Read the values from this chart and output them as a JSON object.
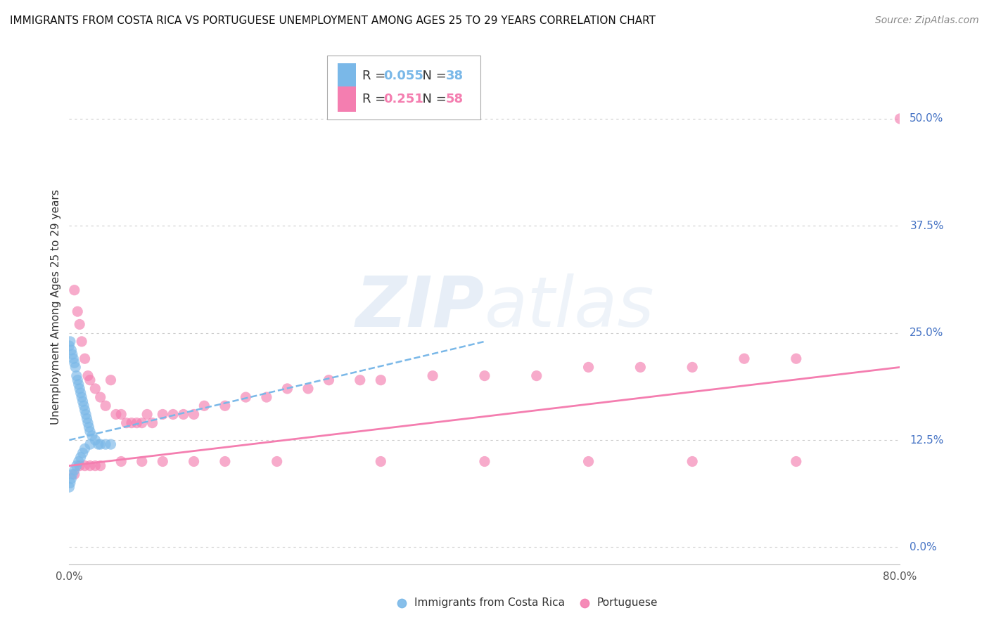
{
  "title": "IMMIGRANTS FROM COSTA RICA VS PORTUGUESE UNEMPLOYMENT AMONG AGES 25 TO 29 YEARS CORRELATION CHART",
  "source": "Source: ZipAtlas.com",
  "ylabel": "Unemployment Among Ages 25 to 29 years",
  "xlim": [
    0.0,
    0.8
  ],
  "ylim": [
    -0.02,
    0.58
  ],
  "xtick_positions": [
    0.0,
    0.8
  ],
  "xtick_labels": [
    "0.0%",
    "80.0%"
  ],
  "ytick_labels": [
    "0.0%",
    "12.5%",
    "25.0%",
    "37.5%",
    "50.0%"
  ],
  "ytick_vals": [
    0.0,
    0.125,
    0.25,
    0.375,
    0.5
  ],
  "watermark_zip": "ZIP",
  "watermark_atlas": "atlas",
  "legend_blue_label": "Immigrants from Costa Rica",
  "legend_pink_label": "Portuguese",
  "blue_R": "0.055",
  "blue_N": "38",
  "pink_R": "0.251",
  "pink_N": "58",
  "blue_color": "#7ab8e8",
  "pink_color": "#f47eb0",
  "blue_scatter_x": [
    0.0,
    0.001,
    0.002,
    0.003,
    0.004,
    0.005,
    0.006,
    0.007,
    0.008,
    0.009,
    0.01,
    0.011,
    0.012,
    0.013,
    0.014,
    0.015,
    0.016,
    0.017,
    0.018,
    0.019,
    0.02,
    0.022,
    0.025,
    0.028,
    0.03,
    0.035,
    0.04,
    0.0,
    0.001,
    0.002,
    0.003,
    0.005,
    0.007,
    0.009,
    0.011,
    0.013,
    0.015,
    0.02
  ],
  "blue_scatter_y": [
    0.235,
    0.24,
    0.23,
    0.225,
    0.22,
    0.215,
    0.21,
    0.2,
    0.195,
    0.19,
    0.185,
    0.18,
    0.175,
    0.17,
    0.165,
    0.16,
    0.155,
    0.15,
    0.145,
    0.14,
    0.135,
    0.13,
    0.125,
    0.12,
    0.12,
    0.12,
    0.12,
    0.07,
    0.075,
    0.08,
    0.085,
    0.09,
    0.095,
    0.1,
    0.105,
    0.11,
    0.115,
    0.12
  ],
  "pink_scatter_x": [
    0.005,
    0.008,
    0.01,
    0.012,
    0.015,
    0.018,
    0.02,
    0.025,
    0.03,
    0.035,
    0.04,
    0.045,
    0.05,
    0.055,
    0.06,
    0.065,
    0.07,
    0.075,
    0.08,
    0.09,
    0.1,
    0.11,
    0.12,
    0.13,
    0.15,
    0.17,
    0.19,
    0.21,
    0.23,
    0.25,
    0.28,
    0.3,
    0.35,
    0.4,
    0.45,
    0.5,
    0.55,
    0.6,
    0.65,
    0.7,
    0.005,
    0.01,
    0.015,
    0.02,
    0.025,
    0.03,
    0.05,
    0.07,
    0.09,
    0.12,
    0.15,
    0.2,
    0.3,
    0.4,
    0.5,
    0.6,
    0.7,
    0.8
  ],
  "pink_scatter_y": [
    0.3,
    0.275,
    0.26,
    0.24,
    0.22,
    0.2,
    0.195,
    0.185,
    0.175,
    0.165,
    0.195,
    0.155,
    0.155,
    0.145,
    0.145,
    0.145,
    0.145,
    0.155,
    0.145,
    0.155,
    0.155,
    0.155,
    0.155,
    0.165,
    0.165,
    0.175,
    0.175,
    0.185,
    0.185,
    0.195,
    0.195,
    0.195,
    0.2,
    0.2,
    0.2,
    0.21,
    0.21,
    0.21,
    0.22,
    0.22,
    0.085,
    0.095,
    0.095,
    0.095,
    0.095,
    0.095,
    0.1,
    0.1,
    0.1,
    0.1,
    0.1,
    0.1,
    0.1,
    0.1,
    0.1,
    0.1,
    0.1,
    0.5
  ],
  "blue_trend_x": [
    0.0,
    0.4
  ],
  "blue_trend_y": [
    0.125,
    0.24
  ],
  "pink_trend_x": [
    0.0,
    0.8
  ],
  "pink_trend_y": [
    0.095,
    0.21
  ],
  "background_color": "#ffffff",
  "grid_color": "#cccccc",
  "title_fontsize": 11,
  "axis_label_fontsize": 11,
  "tick_fontsize": 11,
  "legend_fontsize": 13,
  "source_fontsize": 10
}
